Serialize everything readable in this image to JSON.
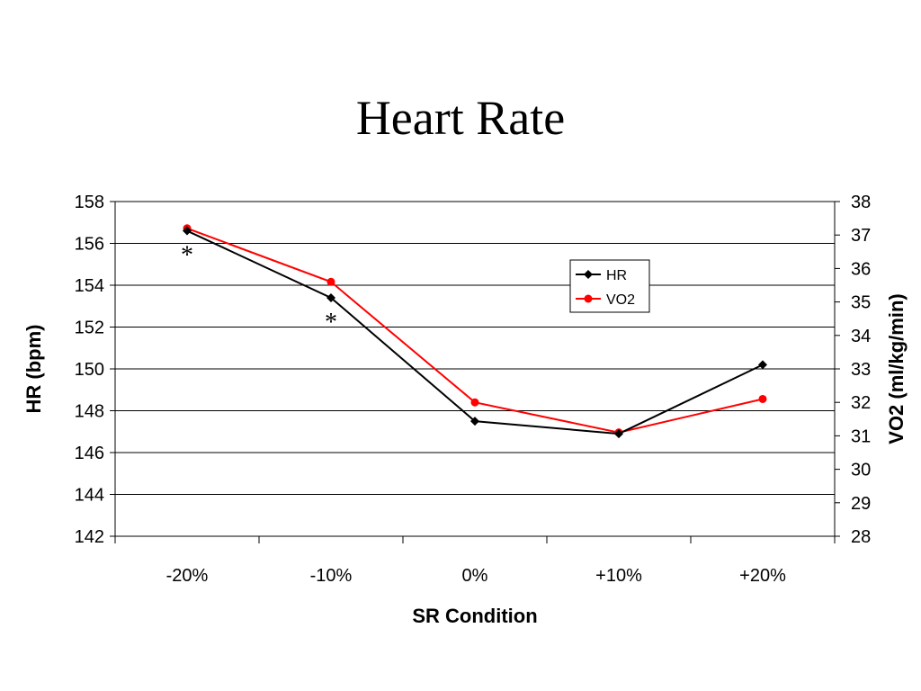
{
  "title": "Heart Rate",
  "chart_data": {
    "type": "line",
    "title": "Heart Rate",
    "xlabel": "SR Condition",
    "ylabel": "HR (bpm)",
    "y2label": "VO2 (ml/kg/min)",
    "categories": [
      "-20%",
      "-10%",
      "0%",
      "+10%",
      "+20%"
    ],
    "ylim": [
      142,
      158
    ],
    "y2lim": [
      28,
      38
    ],
    "yticks": [
      142,
      144,
      146,
      148,
      150,
      152,
      154,
      156,
      158
    ],
    "y2ticks": [
      28,
      29,
      30,
      31,
      32,
      33,
      34,
      35,
      36,
      37,
      38
    ],
    "grid": true,
    "legend": "upper-right-inside",
    "series": [
      {
        "name": "HR",
        "axis": "left",
        "color": "#000000",
        "marker": "diamond",
        "values": [
          156.6,
          153.4,
          147.5,
          146.9,
          150.2
        ]
      },
      {
        "name": "VO2",
        "axis": "right",
        "color": "#ff0000",
        "marker": "circle",
        "values": [
          37.2,
          35.6,
          32.0,
          31.1,
          32.1
        ]
      }
    ],
    "annotations": [
      {
        "text": "*",
        "category": "-20%"
      },
      {
        "text": "*",
        "category": "-10%"
      }
    ]
  }
}
